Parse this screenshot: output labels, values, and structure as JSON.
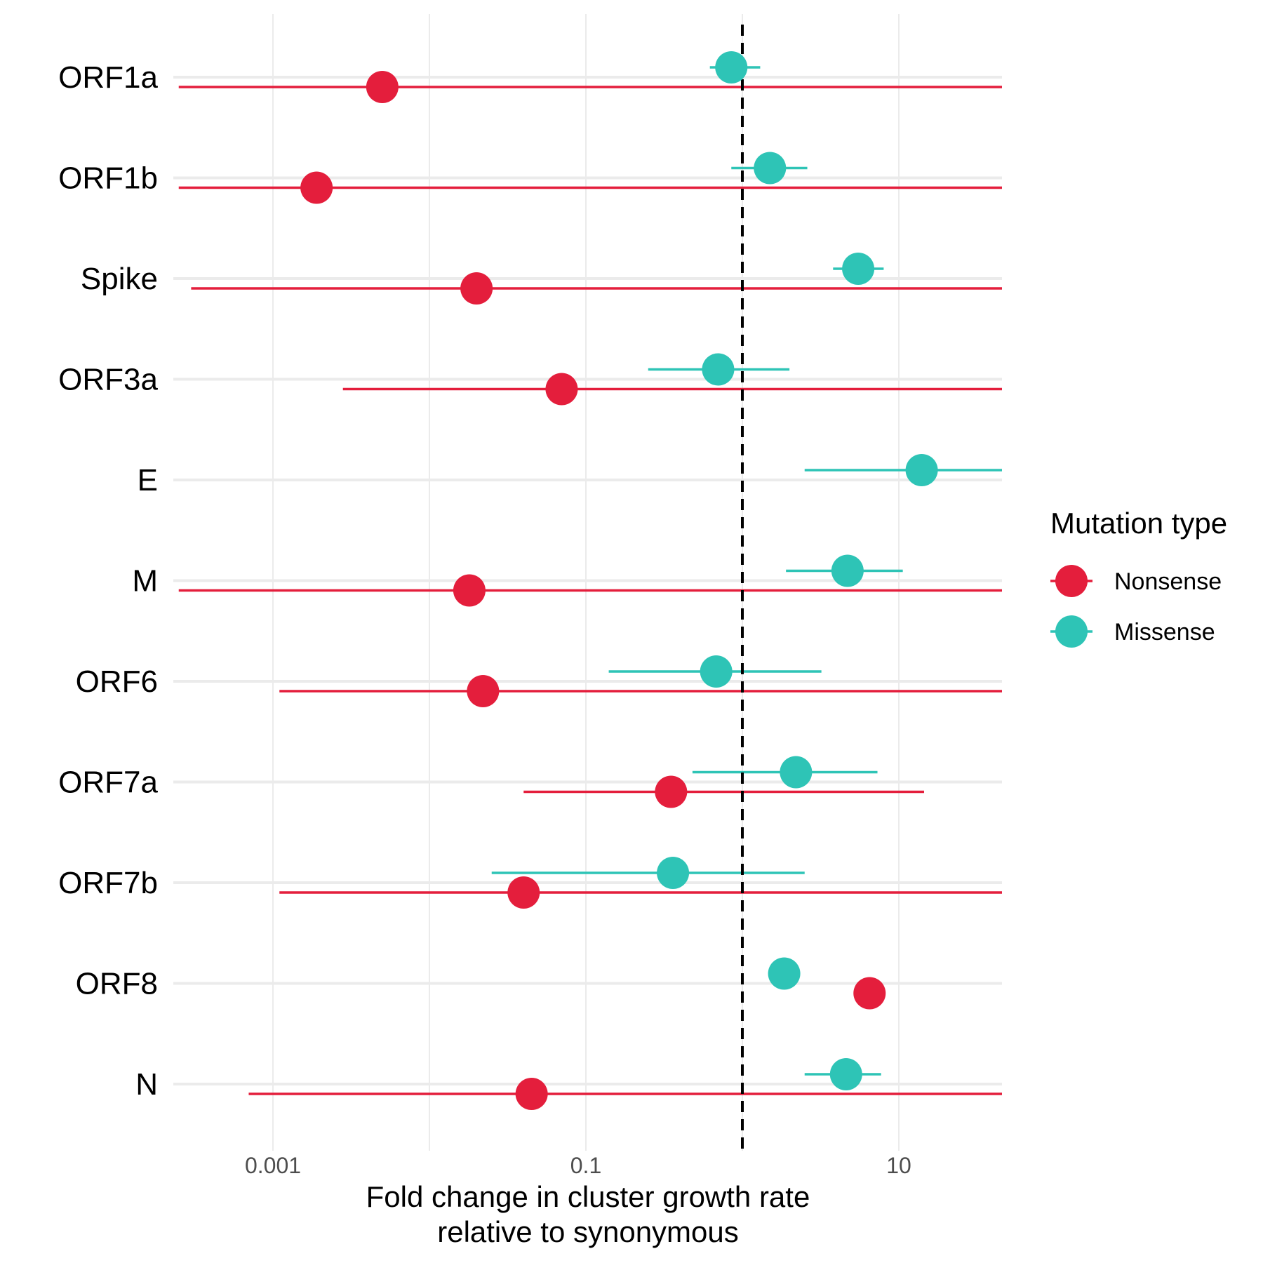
{
  "chart_data": {
    "type": "scatter",
    "subtype": "forest-plot",
    "categories": [
      "ORF1a",
      "ORF1b",
      "Spike",
      "ORF3a",
      "E",
      "M",
      "ORF6",
      "ORF7a",
      "ORF7b",
      "ORF8",
      "N"
    ],
    "x_scale": "log10",
    "xlim": [
      0.00025,
      50
    ],
    "x_ticks": [
      0.001,
      0.1,
      10
    ],
    "x_tick_labels": [
      "0.001",
      "0.1",
      "10"
    ],
    "xlabel": [
      "Fold change in cluster growth rate",
      "relative to synonymous"
    ],
    "ylabel": "",
    "reference_line": 1,
    "grid": true,
    "legend": {
      "title": "Mutation type",
      "position": "right"
    },
    "series": [
      {
        "name": "Nonsense",
        "color": "#E41E3C",
        "estimate": [
          0.005,
          0.0019,
          0.02,
          0.07,
          null,
          0.018,
          0.022,
          0.35,
          0.04,
          6.5,
          0.045
        ],
        "lower": [
          0.00025,
          0.00025,
          0.0003,
          0.0028,
          null,
          0.00025,
          0.0011,
          0.04,
          0.0011,
          null,
          0.0007
        ],
        "upper": [
          50,
          50,
          50,
          50,
          null,
          50,
          50,
          14.5,
          50,
          null,
          50
        ]
      },
      {
        "name": "Missense",
        "color": "#2EC4B6",
        "estimate": [
          0.85,
          1.5,
          5.5,
          0.7,
          14,
          4.7,
          0.68,
          2.2,
          0.36,
          1.85,
          4.6
        ],
        "lower": [
          0.62,
          0.85,
          3.8,
          0.25,
          2.5,
          1.9,
          0.14,
          0.48,
          0.025,
          null,
          2.5
        ],
        "upper": [
          1.3,
          2.6,
          8.0,
          2.0,
          50,
          10.6,
          3.2,
          7.3,
          2.5,
          null,
          7.7
        ]
      }
    ]
  }
}
